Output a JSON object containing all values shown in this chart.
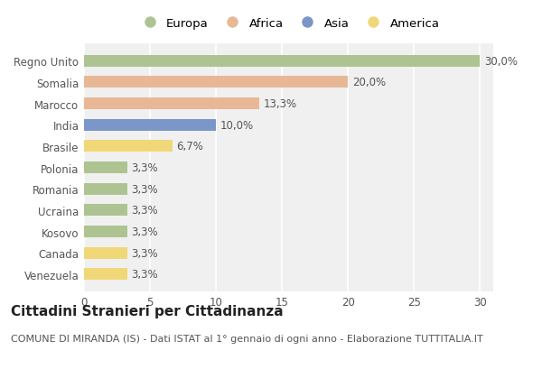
{
  "countries": [
    "Regno Unito",
    "Somalia",
    "Marocco",
    "India",
    "Brasile",
    "Polonia",
    "Romania",
    "Ucraina",
    "Kosovo",
    "Canada",
    "Venezuela"
  ],
  "values": [
    30.0,
    20.0,
    13.3,
    10.0,
    6.7,
    3.3,
    3.3,
    3.3,
    3.3,
    3.3,
    3.3
  ],
  "labels": [
    "30,0%",
    "20,0%",
    "13,3%",
    "10,0%",
    "6,7%",
    "3,3%",
    "3,3%",
    "3,3%",
    "3,3%",
    "3,3%",
    "3,3%"
  ],
  "continents": [
    "Europa",
    "Africa",
    "Africa",
    "Asia",
    "America",
    "Europa",
    "Europa",
    "Europa",
    "Europa",
    "America",
    "America"
  ],
  "colors": {
    "Europa": "#adc492",
    "Africa": "#e8b896",
    "Asia": "#7b96c8",
    "America": "#f0d878"
  },
  "legend_order": [
    "Europa",
    "Africa",
    "Asia",
    "America"
  ],
  "xlim": [
    0,
    31
  ],
  "xticks": [
    0,
    5,
    10,
    15,
    20,
    25,
    30
  ],
  "title": "Cittadini Stranieri per Cittadinanza",
  "subtitle": "COMUNE DI MIRANDA (IS) - Dati ISTAT al 1° gennaio di ogni anno - Elaborazione TUTTITALIA.IT",
  "bg_color": "#ffffff",
  "plot_bg_color": "#f0f0f0",
  "bar_height": 0.55,
  "grid_color": "#ffffff",
  "title_fontsize": 11,
  "subtitle_fontsize": 8,
  "label_fontsize": 8.5,
  "tick_fontsize": 8.5,
  "legend_fontsize": 9.5
}
